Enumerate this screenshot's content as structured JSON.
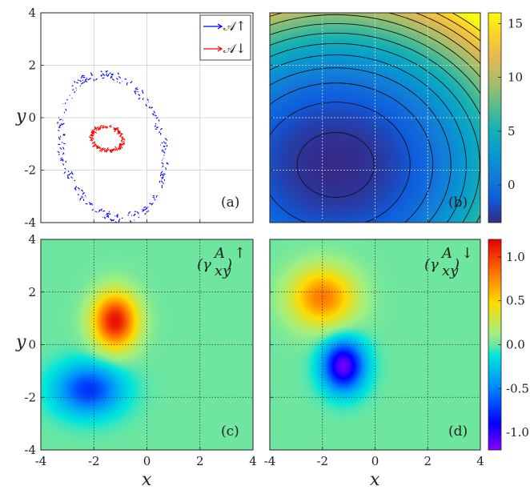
{
  "chart_data": [
    {
      "id": "a",
      "type": "scatter",
      "panel_label": "(a)",
      "xlabel": "",
      "ylabel": "y",
      "xlim": [
        -4,
        4
      ],
      "ylim": [
        -4,
        4
      ],
      "xticks": [
        "-4",
        "-2",
        "0",
        "2",
        "4"
      ],
      "yticks": [
        "-4",
        "-2",
        "0",
        "2",
        "4"
      ],
      "show_xticklabels": false,
      "grid": true,
      "legend_position": "top-right",
      "series": [
        {
          "name": "𝒜↑",
          "color": "#0000ff",
          "shape": "ellipse",
          "center": [
            -1.3,
            -1.1
          ],
          "semi_axes": [
            1.9,
            2.8
          ],
          "rotation_deg": 15,
          "points": 260
        },
        {
          "name": "𝒜↓",
          "color": "#ff0000",
          "shape": "ellipse",
          "center": [
            -1.5,
            -0.8
          ],
          "semi_axes": [
            0.6,
            0.45
          ],
          "rotation_deg": -10,
          "points": 160
        }
      ]
    },
    {
      "id": "b",
      "type": "heatmap",
      "panel_label": "(b)",
      "xlabel": "",
      "ylabel": "",
      "xlim": [
        -4,
        4
      ],
      "ylim": [
        -4,
        4
      ],
      "colorbar": {
        "range": [
          -3.5,
          16
        ],
        "ticks": [
          {
            "v": 15,
            "t": "15"
          },
          {
            "v": 10,
            "t": "10"
          },
          {
            "v": 5,
            "t": "5"
          },
          {
            "v": 0,
            "t": "0"
          }
        ]
      },
      "field": {
        "minimum_at": [
          -1.5,
          -1.8
        ],
        "min_value": -3.5,
        "max_value": 16,
        "contour_levels": [
          -3,
          -1.5,
          0,
          1.5,
          3,
          4.5,
          6,
          7.5,
          9,
          10.5,
          12,
          13.5,
          15
        ]
      },
      "grid": true
    },
    {
      "id": "c",
      "type": "heatmap",
      "panel_label": "(c)",
      "annotation": "(γ",
      "annotation_sub": "xy",
      "annotation_sup": "A",
      "annotation_spin": "↑",
      "xlabel": "x",
      "ylabel": "y",
      "xlim": [
        -4,
        4
      ],
      "ylim": [
        -4,
        4
      ],
      "xticks": [
        "-4",
        "-2",
        "0",
        "2",
        "4"
      ],
      "yticks": [
        "-4",
        "-2",
        "0",
        "2",
        "4"
      ],
      "blobs": [
        {
          "center": [
            -1.2,
            0.9
          ],
          "sigma": [
            0.75,
            0.95
          ],
          "amplitude": 1.15
        },
        {
          "center": [
            -2.2,
            -1.7
          ],
          "sigma": [
            1.1,
            0.85
          ],
          "amplitude": -0.75
        }
      ],
      "grid": true
    },
    {
      "id": "d",
      "type": "heatmap",
      "panel_label": "(d)",
      "annotation": "(γ",
      "annotation_sub": "xy",
      "annotation_sup": "A",
      "annotation_spin": "↓",
      "xlabel": "x",
      "ylabel": "",
      "xlim": [
        -4,
        4
      ],
      "ylim": [
        -4,
        4
      ],
      "xticks": [
        "-4",
        "-2",
        "0",
        "2",
        "4"
      ],
      "colorbar": {
        "range": [
          -1.2,
          1.2
        ],
        "ticks": [
          {
            "v": 1.0,
            "t": "1.0"
          },
          {
            "v": 0.5,
            "t": "0.5"
          },
          {
            "v": 0.0,
            "t": "0.0"
          },
          {
            "v": -0.5,
            "t": "-0.5"
          },
          {
            "v": -1.0,
            "t": "-1.0"
          }
        ]
      },
      "blobs": [
        {
          "center": [
            -2.0,
            1.8
          ],
          "sigma": [
            1.1,
            1.0
          ],
          "amplitude": 0.8
        },
        {
          "center": [
            -1.2,
            -0.8
          ],
          "sigma": [
            0.7,
            0.85
          ],
          "amplitude": -1.15
        }
      ],
      "grid": true
    }
  ]
}
